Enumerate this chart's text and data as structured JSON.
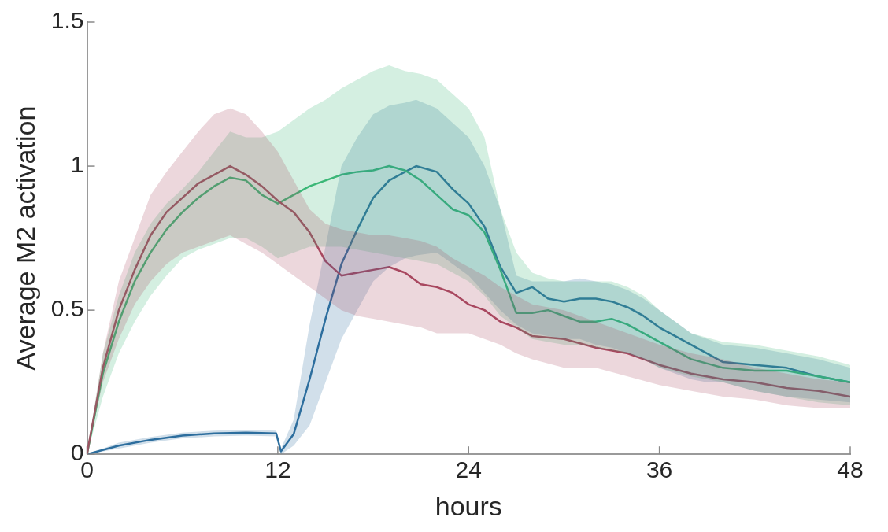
{
  "chart_data": {
    "type": "line",
    "xlabel": "hours",
    "ylabel": "Average M2 activation",
    "xlim": [
      0,
      48
    ],
    "xticks": [
      0,
      12,
      24,
      36,
      48
    ],
    "ylim": [
      0,
      1.5
    ],
    "yticks": [
      0,
      0.5,
      1,
      1.5
    ],
    "grid": false,
    "legend": false,
    "marker": "none",
    "line_style": "solid",
    "series": [
      {
        "color": "#a8475f",
        "x": [
          0,
          1,
          2,
          3,
          4,
          5,
          6,
          7,
          8,
          9,
          10,
          11,
          12,
          13,
          14,
          15,
          16,
          17,
          18,
          19,
          20,
          21,
          22,
          23,
          24,
          25,
          26,
          27,
          28,
          30,
          32,
          34,
          36,
          38,
          40,
          42,
          44,
          46,
          48
        ],
        "values": [
          0,
          0.3,
          0.5,
          0.64,
          0.76,
          0.84,
          0.89,
          0.94,
          0.97,
          1.0,
          0.97,
          0.93,
          0.88,
          0.84,
          0.77,
          0.67,
          0.62,
          0.63,
          0.64,
          0.65,
          0.63,
          0.59,
          0.58,
          0.56,
          0.52,
          0.5,
          0.46,
          0.44,
          0.41,
          0.4,
          0.37,
          0.35,
          0.31,
          0.28,
          0.26,
          0.25,
          0.23,
          0.22,
          0.2
        ],
        "upper": [
          0,
          0.35,
          0.6,
          0.75,
          0.9,
          0.98,
          1.05,
          1.12,
          1.18,
          1.2,
          1.18,
          1.12,
          1.05,
          0.95,
          0.85,
          0.8,
          0.78,
          0.77,
          0.76,
          0.76,
          0.75,
          0.74,
          0.72,
          0.68,
          0.65,
          0.62,
          0.58,
          0.55,
          0.52,
          0.5,
          0.46,
          0.42,
          0.38,
          0.35,
          0.33,
          0.3,
          0.28,
          0.26,
          0.25
        ],
        "lower": [
          0,
          0.25,
          0.4,
          0.52,
          0.6,
          0.66,
          0.7,
          0.72,
          0.74,
          0.76,
          0.73,
          0.7,
          0.66,
          0.62,
          0.58,
          0.54,
          0.5,
          0.48,
          0.47,
          0.46,
          0.45,
          0.44,
          0.42,
          0.42,
          0.42,
          0.4,
          0.38,
          0.35,
          0.33,
          0.3,
          0.3,
          0.27,
          0.24,
          0.22,
          0.2,
          0.19,
          0.17,
          0.16,
          0.16
        ]
      },
      {
        "color": "#3cb878",
        "x": [
          0,
          1,
          2,
          3,
          4,
          5,
          6,
          7,
          8,
          9,
          10,
          11,
          12,
          13,
          14,
          15,
          16,
          17,
          18,
          19,
          20,
          21,
          22,
          23,
          24,
          25,
          26,
          27,
          28,
          29,
          30,
          31,
          32,
          33,
          34,
          35,
          36,
          38,
          40,
          42,
          44,
          46,
          48
        ],
        "values": [
          0,
          0.28,
          0.46,
          0.6,
          0.7,
          0.78,
          0.84,
          0.89,
          0.93,
          0.96,
          0.95,
          0.9,
          0.87,
          0.9,
          0.93,
          0.95,
          0.97,
          0.98,
          0.985,
          1.0,
          0.985,
          0.95,
          0.9,
          0.85,
          0.83,
          0.77,
          0.64,
          0.49,
          0.49,
          0.5,
          0.48,
          0.46,
          0.46,
          0.47,
          0.45,
          0.42,
          0.39,
          0.33,
          0.3,
          0.29,
          0.29,
          0.27,
          0.25
        ],
        "upper": [
          0,
          0.35,
          0.55,
          0.7,
          0.8,
          0.87,
          0.92,
          0.98,
          1.05,
          1.12,
          1.1,
          1.1,
          1.12,
          1.16,
          1.2,
          1.23,
          1.27,
          1.3,
          1.33,
          1.35,
          1.33,
          1.32,
          1.3,
          1.25,
          1.2,
          1.1,
          0.85,
          0.7,
          0.63,
          0.61,
          0.6,
          0.6,
          0.6,
          0.6,
          0.58,
          0.55,
          0.5,
          0.42,
          0.39,
          0.38,
          0.36,
          0.34,
          0.31
        ],
        "lower": [
          0,
          0.2,
          0.35,
          0.46,
          0.55,
          0.62,
          0.68,
          0.71,
          0.73,
          0.75,
          0.75,
          0.72,
          0.68,
          0.7,
          0.72,
          0.72,
          0.72,
          0.71,
          0.7,
          0.69,
          0.68,
          0.67,
          0.66,
          0.63,
          0.6,
          0.55,
          0.48,
          0.44,
          0.4,
          0.39,
          0.38,
          0.38,
          0.37,
          0.36,
          0.35,
          0.33,
          0.3,
          0.27,
          0.25,
          0.22,
          0.2,
          0.18,
          0.17
        ]
      },
      {
        "color": "#2e6f9e",
        "x": [
          0,
          2,
          4,
          6,
          8,
          10,
          11.9,
          12.2,
          13,
          14,
          15,
          16,
          17,
          18,
          19,
          20,
          20.7,
          22,
          23,
          24,
          25,
          26,
          27,
          28,
          29,
          30,
          31,
          32,
          33,
          34,
          35,
          36,
          37,
          38,
          39,
          40,
          42,
          44,
          46,
          48
        ],
        "values": [
          0,
          0.03,
          0.05,
          0.065,
          0.072,
          0.075,
          0.072,
          0.01,
          0.07,
          0.26,
          0.47,
          0.66,
          0.78,
          0.89,
          0.95,
          0.98,
          1.0,
          0.98,
          0.92,
          0.87,
          0.79,
          0.65,
          0.56,
          0.58,
          0.54,
          0.53,
          0.54,
          0.54,
          0.53,
          0.51,
          0.48,
          0.44,
          0.41,
          0.38,
          0.35,
          0.32,
          0.31,
          0.3,
          0.27,
          0.25
        ],
        "upper": [
          0,
          0.04,
          0.06,
          0.075,
          0.082,
          0.085,
          0.082,
          0.02,
          0.12,
          0.45,
          0.72,
          1.0,
          1.1,
          1.18,
          1.21,
          1.22,
          1.23,
          1.2,
          1.15,
          1.1,
          1.0,
          0.85,
          0.62,
          0.6,
          0.6,
          0.6,
          0.61,
          0.6,
          0.59,
          0.57,
          0.54,
          0.5,
          0.46,
          0.42,
          0.4,
          0.38,
          0.37,
          0.35,
          0.33,
          0.3
        ],
        "lower": [
          0,
          0.02,
          0.04,
          0.055,
          0.062,
          0.065,
          0.062,
          0.0,
          0.03,
          0.1,
          0.25,
          0.4,
          0.5,
          0.6,
          0.65,
          0.68,
          0.69,
          0.7,
          0.66,
          0.62,
          0.56,
          0.5,
          0.45,
          0.42,
          0.41,
          0.4,
          0.4,
          0.38,
          0.37,
          0.35,
          0.33,
          0.3,
          0.28,
          0.26,
          0.25,
          0.25,
          0.22,
          0.2,
          0.19,
          0.18
        ]
      }
    ]
  }
}
